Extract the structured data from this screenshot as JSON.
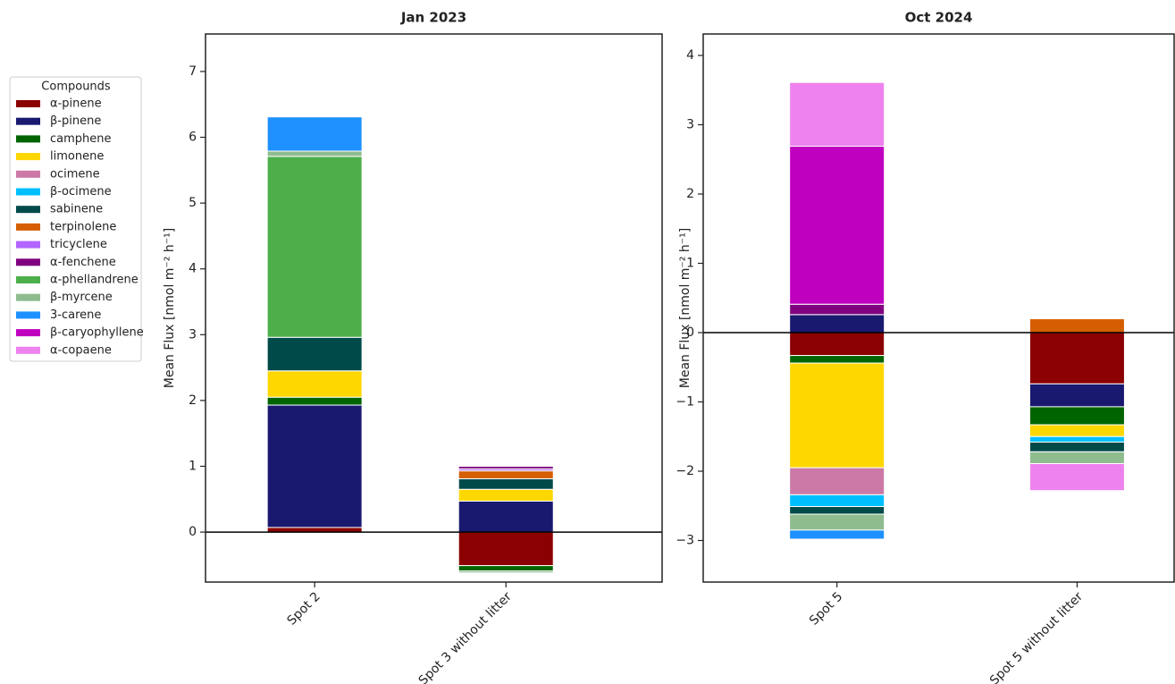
{
  "legend_title": "Compounds",
  "chart_data": [
    {
      "type": "bar",
      "stacked": true,
      "title": "Jan 2023",
      "ylabel": "Mean Flux [nmol m⁻² h⁻¹]",
      "categories": [
        "Spot 2",
        "Spot 3 without litter"
      ],
      "ylim": [
        -0.76,
        7.57
      ],
      "yticks": [
        0,
        1,
        2,
        3,
        4,
        5,
        6,
        7
      ],
      "series": [
        {
          "name": "α-pinene",
          "color": "#8b0000",
          "values": [
            0.07,
            -0.51
          ]
        },
        {
          "name": "β-pinene",
          "color": "#191970",
          "values": [
            1.86,
            0.47
          ]
        },
        {
          "name": "camphene",
          "color": "#006400",
          "values": [
            0.12,
            -0.08
          ]
        },
        {
          "name": "limonene",
          "color": "#ffd700",
          "values": [
            0.4,
            0.18
          ]
        },
        {
          "name": "ocimene",
          "color": "#cc79a7",
          "values": [
            0,
            0
          ]
        },
        {
          "name": "β-ocimene",
          "color": "#00bfff",
          "values": [
            0,
            0
          ]
        },
        {
          "name": "sabinene",
          "color": "#004a4a",
          "values": [
            0.51,
            0.16
          ]
        },
        {
          "name": "terpinolene",
          "color": "#d55e00",
          "values": [
            0,
            0.12
          ]
        },
        {
          "name": "tricyclene",
          "color": "#b266ff",
          "values": [
            0,
            0.03
          ]
        },
        {
          "name": "α-fenchene",
          "color": "#800080",
          "values": [
            0,
            0.04
          ]
        },
        {
          "name": "α-phellandrene",
          "color": "#4daf4a",
          "values": [
            2.75,
            0
          ]
        },
        {
          "name": "β-myrcene",
          "color": "#8fbc8f",
          "values": [
            0.08,
            -0.03
          ]
        },
        {
          "name": "3-carene",
          "color": "#1e90ff",
          "values": [
            0.52,
            0
          ]
        },
        {
          "name": "β-caryophyllene",
          "color": "#bf00bf",
          "values": [
            0,
            0
          ]
        },
        {
          "name": "α-copaene",
          "color": "#ee82ee",
          "values": [
            0,
            0
          ]
        }
      ]
    },
    {
      "type": "bar",
      "stacked": true,
      "title": "Oct 2024",
      "ylabel": "Mean Flux [nmol m⁻² h⁻¹]",
      "categories": [
        "Spot 5",
        "Spot 5 without litter"
      ],
      "ylim": [
        -3.6,
        4.31
      ],
      "yticks": [
        {
          "value": -3,
          "label": "−3"
        },
        {
          "value": -2,
          "label": "−2"
        },
        {
          "value": -1,
          "label": "−1"
        },
        0,
        1,
        2,
        3,
        4
      ],
      "series": [
        {
          "name": "α-pinene",
          "color": "#8b0000",
          "values": [
            -0.33,
            -0.74
          ]
        },
        {
          "name": "β-pinene",
          "color": "#191970",
          "values": [
            0.26,
            -0.33
          ]
        },
        {
          "name": "camphene",
          "color": "#006400",
          "values": [
            -0.11,
            -0.26
          ]
        },
        {
          "name": "limonene",
          "color": "#ffd700",
          "values": [
            -1.51,
            -0.17
          ]
        },
        {
          "name": "ocimene",
          "color": "#cc79a7",
          "values": [
            -0.39,
            0
          ]
        },
        {
          "name": "β-ocimene",
          "color": "#00bfff",
          "values": [
            -0.17,
            -0.08
          ]
        },
        {
          "name": "sabinene",
          "color": "#004a4a",
          "values": [
            -0.11,
            -0.14
          ]
        },
        {
          "name": "terpinolene",
          "color": "#d55e00",
          "values": [
            0,
            0.2
          ]
        },
        {
          "name": "tricyclene",
          "color": "#b266ff",
          "values": [
            0,
            0
          ]
        },
        {
          "name": "α-fenchene",
          "color": "#800080",
          "values": [
            0.15,
            0
          ]
        },
        {
          "name": "α-phellandrene",
          "color": "#4daf4a",
          "values": [
            0,
            0
          ]
        },
        {
          "name": "β-myrcene",
          "color": "#8fbc8f",
          "values": [
            -0.23,
            -0.17
          ]
        },
        {
          "name": "3-carene",
          "color": "#1e90ff",
          "values": [
            -0.13,
            0
          ]
        },
        {
          "name": "β-caryophyllene",
          "color": "#bf00bf",
          "values": [
            2.28,
            0
          ]
        },
        {
          "name": "α-copaene",
          "color": "#ee82ee",
          "values": [
            0.92,
            -0.39
          ]
        }
      ]
    }
  ]
}
